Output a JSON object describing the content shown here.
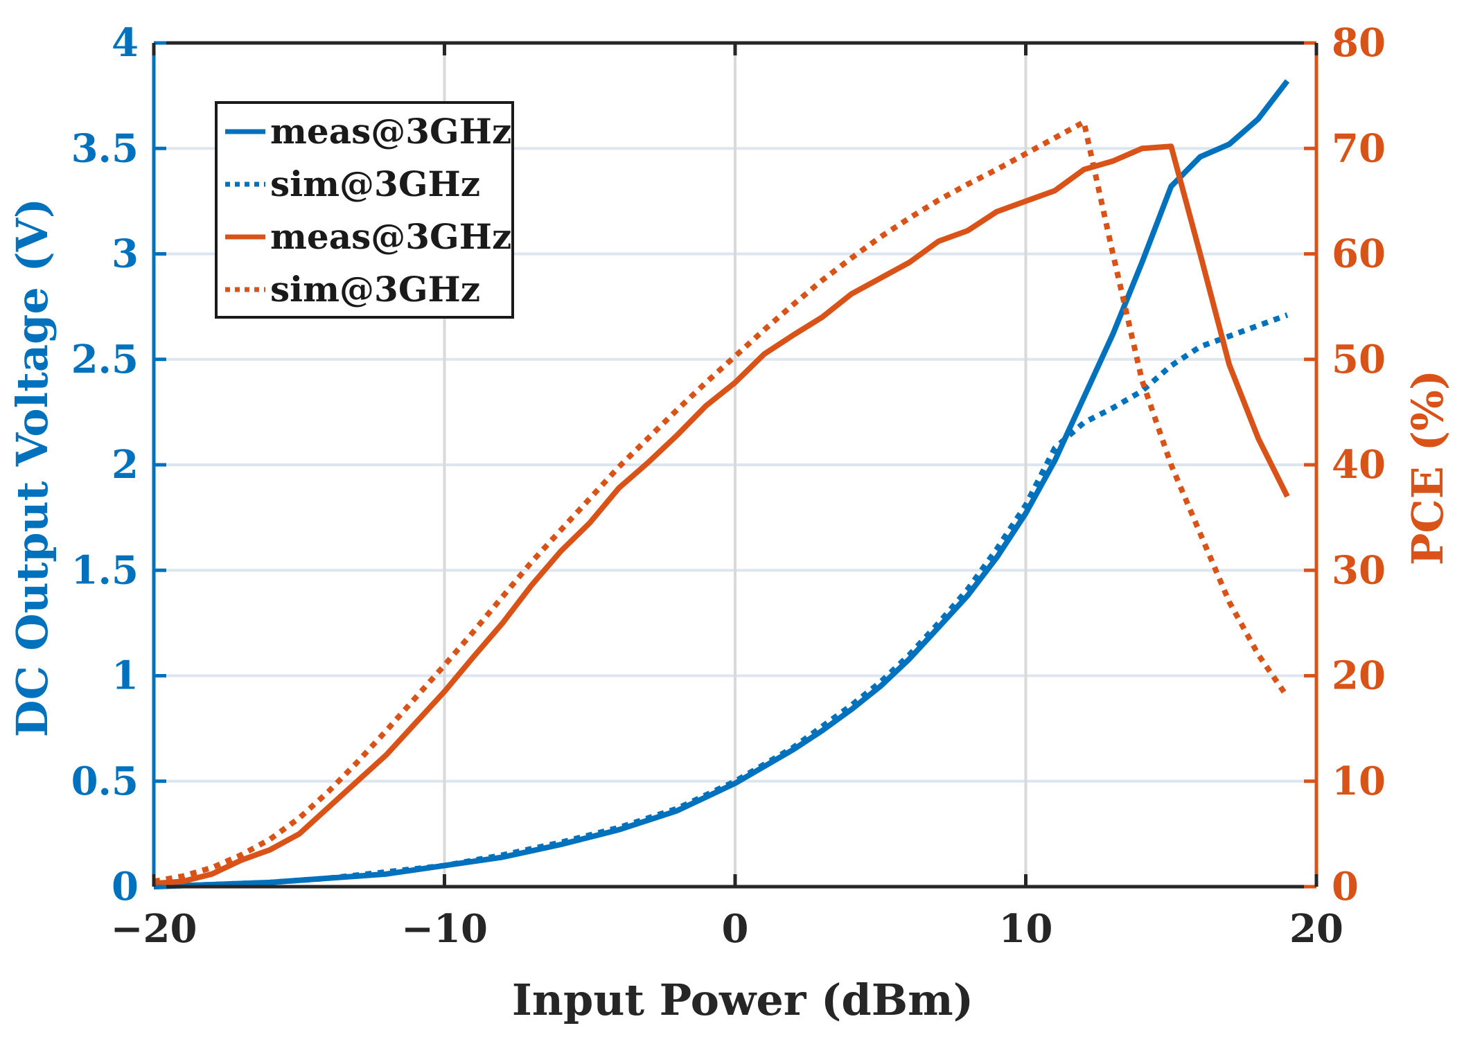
{
  "chart_data": {
    "type": "line",
    "title": "",
    "xlabel": "Input Power (dBm)",
    "ylabel_left": "DC Output Voltage (V)",
    "ylabel_right": "PCE (%)",
    "xlim": [
      -20,
      20
    ],
    "ylim_left": [
      0,
      4
    ],
    "ylim_right": [
      0,
      80
    ],
    "x_ticks": [
      -20,
      -10,
      0,
      10,
      20
    ],
    "x_tick_labels": [
      "−20",
      "−10",
      "0",
      "10",
      "20"
    ],
    "y_left_ticks": [
      0,
      0.5,
      1,
      1.5,
      2,
      2.5,
      3,
      3.5,
      4
    ],
    "y_left_tick_labels": [
      "0",
      "0.5",
      "1",
      "1.5",
      "2",
      "2.5",
      "3",
      "3.5",
      "4"
    ],
    "y_right_ticks": [
      0,
      10,
      20,
      30,
      40,
      50,
      60,
      70,
      80
    ],
    "y_right_tick_labels": [
      "0",
      "10",
      "20",
      "30",
      "40",
      "50",
      "60",
      "70",
      "80"
    ],
    "grid": true,
    "legend_position": "top-left",
    "colors": {
      "voltage": "#0072BD",
      "pce": "#D95319",
      "frame": "#262626",
      "grid": "#dde6ee"
    },
    "series": [
      {
        "name": "meas@3GHz",
        "axis": "left",
        "style": "solid",
        "color": "#0072BD",
        "x": [
          -20,
          -18,
          -16,
          -14,
          -12,
          -10,
          -8,
          -6,
          -4,
          -2,
          0,
          1,
          2,
          3,
          4,
          5,
          6,
          7,
          8,
          9,
          10,
          11,
          12,
          13,
          14,
          15,
          16,
          17,
          18,
          19
        ],
        "y": [
          0,
          0.01,
          0.02,
          0.04,
          0.06,
          0.1,
          0.14,
          0.2,
          0.27,
          0.36,
          0.49,
          0.57,
          0.65,
          0.74,
          0.84,
          0.95,
          1.08,
          1.23,
          1.38,
          1.56,
          1.77,
          2.02,
          2.32,
          2.62,
          2.96,
          3.32,
          3.46,
          3.52,
          3.64,
          3.82
        ]
      },
      {
        "name": "sim@3GHz",
        "axis": "left",
        "style": "dotted",
        "color": "#0072BD",
        "x": [
          -20,
          -18,
          -16,
          -14,
          -12,
          -10,
          -8,
          -6,
          -4,
          -2,
          0,
          1,
          2,
          3,
          4,
          5,
          6,
          7,
          8,
          9,
          10,
          11,
          12,
          13,
          14,
          15,
          16,
          17,
          18,
          19
        ],
        "y": [
          0,
          0.01,
          0.02,
          0.04,
          0.07,
          0.1,
          0.15,
          0.21,
          0.28,
          0.37,
          0.5,
          0.58,
          0.66,
          0.76,
          0.86,
          0.97,
          1.1,
          1.25,
          1.41,
          1.6,
          1.81,
          2.08,
          2.2,
          2.27,
          2.35,
          2.47,
          2.56,
          2.61,
          2.66,
          2.71
        ]
      },
      {
        "name": "meas@3GHz",
        "axis": "right",
        "style": "solid",
        "color": "#D95319",
        "x": [
          -20,
          -19,
          -18,
          -17,
          -16,
          -15,
          -14,
          -13,
          -12,
          -11,
          -10,
          -9,
          -8,
          -7,
          -6,
          -5,
          -4,
          -3,
          -2,
          -1,
          0,
          1,
          2,
          3,
          4,
          5,
          6,
          7,
          8,
          9,
          10,
          11,
          12,
          13,
          14,
          15,
          16,
          17,
          18,
          19
        ],
        "y": [
          0.3,
          0.5,
          1.2,
          2.5,
          3.5,
          5,
          7.5,
          10,
          12.5,
          15.5,
          18.5,
          21.8,
          25,
          28.6,
          31.8,
          34.5,
          37.8,
          40.2,
          42.8,
          45.6,
          47.8,
          50.5,
          52.3,
          54,
          56.2,
          57.7,
          59.2,
          61.2,
          62.2,
          64,
          65,
          66,
          68,
          68.8,
          70,
          70.2,
          60,
          49.5,
          42.5,
          37
        ]
      },
      {
        "name": "sim@3GHz",
        "axis": "right",
        "style": "dotted",
        "color": "#D95319",
        "x": [
          -20,
          -19,
          -18,
          -17,
          -16,
          -15,
          -14,
          -13,
          -12,
          -11,
          -10,
          -9,
          -8,
          -7,
          -6,
          -5,
          -4,
          -3,
          -2,
          -1,
          0,
          1,
          2,
          3,
          4,
          5,
          6,
          7,
          8,
          9,
          10,
          11,
          12,
          13,
          14,
          15,
          16,
          17,
          18,
          19
        ],
        "y": [
          0.5,
          1,
          1.8,
          3,
          4.5,
          6.5,
          9,
          11.8,
          14.8,
          17.9,
          21,
          24.2,
          27.5,
          30.8,
          33.8,
          36.8,
          39.8,
          42.5,
          45.2,
          47.8,
          50.3,
          52.8,
          55.2,
          57.5,
          59.6,
          61.6,
          63.4,
          65.1,
          66.6,
          68,
          69.5,
          71,
          72.5,
          60,
          48,
          40,
          33.5,
          27,
          22,
          18
        ]
      }
    ]
  }
}
